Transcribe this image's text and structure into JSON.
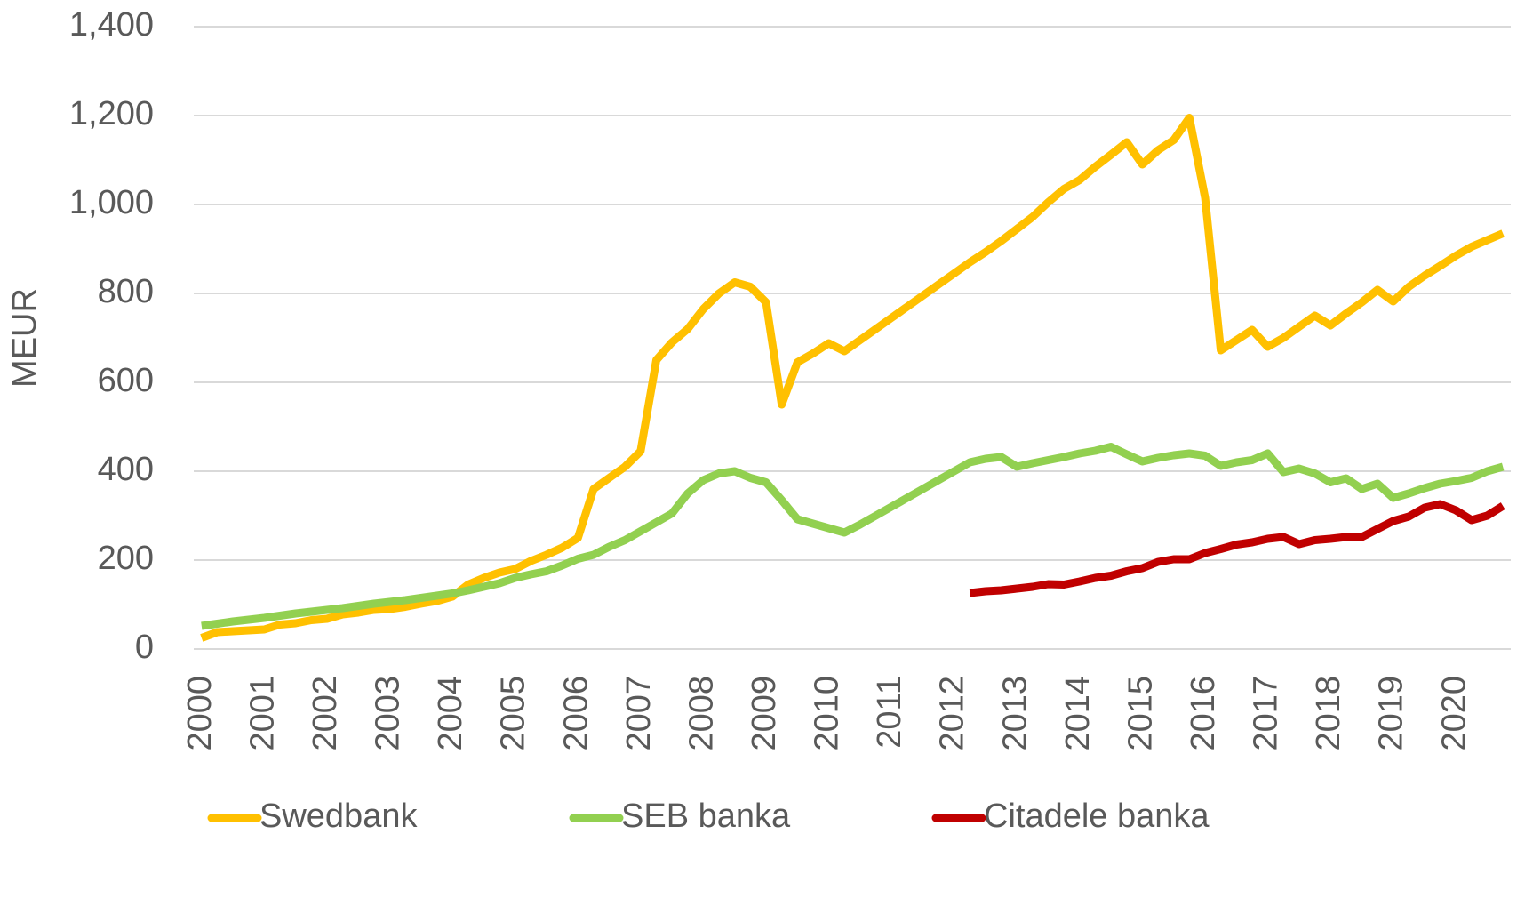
{
  "chart_data": {
    "type": "line",
    "ylabel": "MEUR",
    "categories": [
      "2000",
      null,
      null,
      null,
      "2001",
      null,
      null,
      null,
      "2002",
      null,
      null,
      null,
      "2003",
      null,
      null,
      null,
      "2004",
      null,
      null,
      null,
      "2005",
      null,
      null,
      null,
      "2006",
      null,
      null,
      null,
      "2007",
      null,
      null,
      null,
      "2008",
      null,
      null,
      null,
      "2009",
      null,
      null,
      null,
      "2010",
      null,
      null,
      null,
      "2011",
      null,
      null,
      null,
      "2012",
      null,
      null,
      null,
      "2013",
      null,
      null,
      null,
      "2014",
      null,
      null,
      null,
      "2015",
      null,
      null,
      null,
      "2016",
      null,
      null,
      null,
      "2017",
      null,
      null,
      null,
      "2018",
      null,
      null,
      null,
      "2019",
      null,
      null,
      null,
      "2020",
      null,
      null,
      null
    ],
    "series": [
      {
        "name": "Swedbank",
        "color": "#FFC000",
        "values": [
          25,
          38,
          40,
          42,
          44,
          55,
          58,
          65,
          68,
          78,
          82,
          88,
          90,
          95,
          102,
          108,
          118,
          145,
          160,
          172,
          180,
          198,
          212,
          228,
          250,
          360,
          385,
          410,
          445,
          650,
          690,
          720,
          765,
          800,
          825,
          815,
          780,
          550,
          645,
          665,
          688,
          670,
          695,
          720,
          745,
          770,
          795,
          820,
          845,
          870,
          893,
          918,
          945,
          972,
          1005,
          1035,
          1055,
          1085,
          1112,
          1140,
          1090,
          1122,
          1145,
          1195,
          1015,
          672,
          695,
          718,
          680,
          700,
          725,
          750,
          728,
          755,
          780,
          808,
          782,
          815,
          840,
          862,
          885,
          905,
          920,
          935
        ]
      },
      {
        "name": "SEB banka",
        "color": "#92D050",
        "values": [
          52,
          57,
          62,
          66,
          70,
          75,
          80,
          84,
          88,
          92,
          97,
          102,
          106,
          110,
          115,
          120,
          125,
          132,
          140,
          148,
          160,
          168,
          175,
          188,
          203,
          212,
          230,
          245,
          265,
          285,
          305,
          350,
          380,
          395,
          400,
          385,
          375,
          335,
          292,
          282,
          272,
          262,
          280,
          300,
          320,
          340,
          360,
          380,
          400,
          420,
          428,
          432,
          410,
          418,
          425,
          432,
          440,
          446,
          455,
          438,
          422,
          430,
          436,
          440,
          435,
          412,
          420,
          425,
          440,
          398,
          406,
          395,
          375,
          384,
          360,
          372,
          340,
          350,
          362,
          372,
          378,
          385,
          400,
          410
        ]
      },
      {
        "name": "Citadele banka",
        "color": "#C00000",
        "values": [
          null,
          null,
          null,
          null,
          null,
          null,
          null,
          null,
          null,
          null,
          null,
          null,
          null,
          null,
          null,
          null,
          null,
          null,
          null,
          null,
          null,
          null,
          null,
          null,
          null,
          null,
          null,
          null,
          null,
          null,
          null,
          null,
          null,
          null,
          null,
          null,
          null,
          null,
          null,
          null,
          null,
          null,
          null,
          null,
          null,
          null,
          null,
          null,
          null,
          126,
          130,
          132,
          136,
          140,
          146,
          145,
          152,
          160,
          165,
          175,
          182,
          196,
          202,
          202,
          216,
          225,
          235,
          240,
          248,
          252,
          236,
          245,
          248,
          252,
          252,
          270,
          288,
          298,
          318,
          326,
          312,
          290,
          300,
          322
        ]
      }
    ],
    "ylim": [
      0,
      1400
    ],
    "yticks": [
      0,
      200,
      400,
      600,
      800,
      {
        "value": 1000,
        "label": "1,000"
      },
      {
        "value": 1200,
        "label": "1,200"
      },
      {
        "value": 1400,
        "label": "1,400"
      }
    ],
    "grid": true
  }
}
